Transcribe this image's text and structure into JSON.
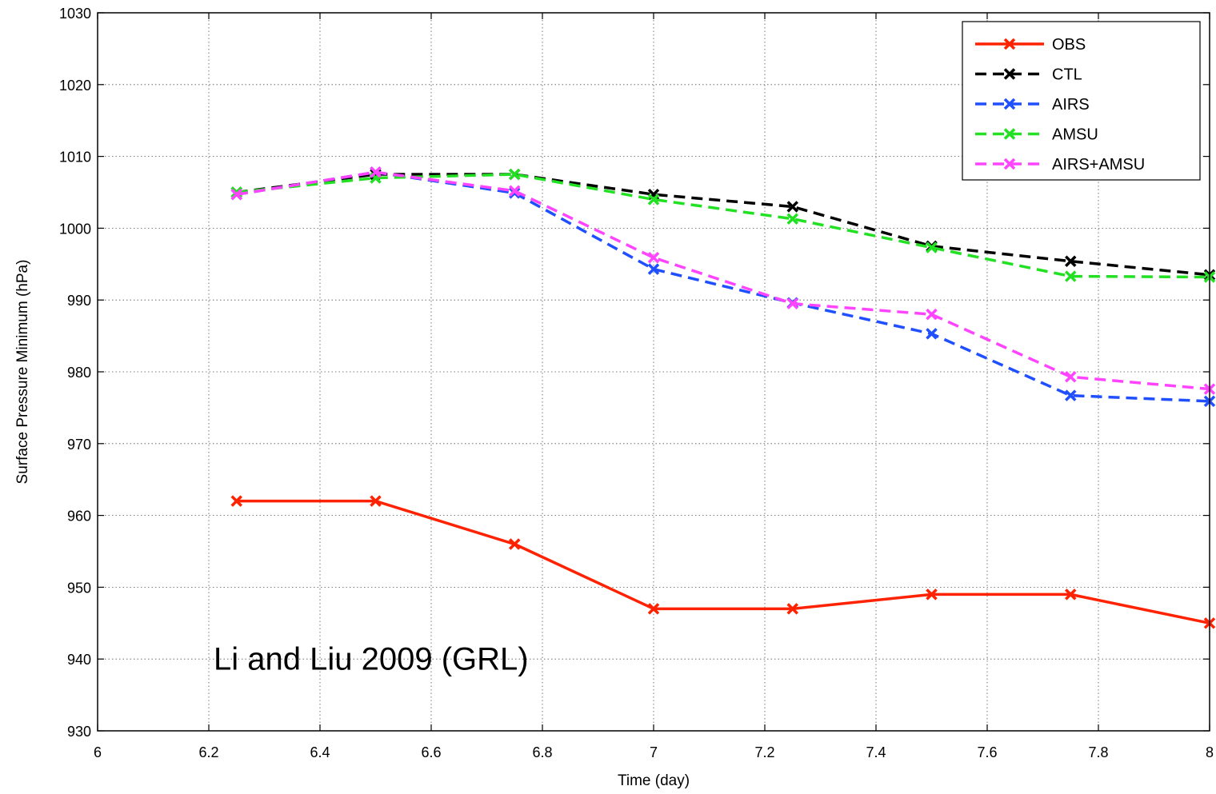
{
  "chart_data": {
    "type": "line",
    "xlabel": "Time (day)",
    "ylabel": "Surface Pressure Minimum (hPa)",
    "xlim": [
      6,
      8
    ],
    "ylim": [
      930,
      1030
    ],
    "x_ticks": [
      6,
      6.2,
      6.4,
      6.6,
      6.8,
      7,
      7.2,
      7.4,
      7.6,
      7.8,
      8
    ],
    "x_tick_labels": [
      "6",
      "6.2",
      "6.4",
      "6.6",
      "6.8",
      "7",
      "7.2",
      "7.4",
      "7.6",
      "7.8",
      "8"
    ],
    "y_ticks": [
      930,
      940,
      950,
      960,
      970,
      980,
      990,
      1000,
      1010,
      1020,
      1030
    ],
    "y_tick_labels": [
      "930",
      "940",
      "950",
      "960",
      "970",
      "980",
      "990",
      "1000",
      "1010",
      "1020",
      "1030"
    ],
    "grid": true,
    "legend_position": "top-right",
    "annotation": "Li and Liu 2009 (GRL)",
    "x": [
      6.25,
      6.5,
      6.75,
      7.0,
      7.25,
      7.5,
      7.75,
      8.0
    ],
    "series": [
      {
        "name": "OBS",
        "color": "#ff2200",
        "style": "solid",
        "marker": "x",
        "values": [
          962,
          962,
          956,
          947,
          947,
          949,
          949,
          945
        ]
      },
      {
        "name": "CTL",
        "color": "#000000",
        "style": "dashed",
        "marker": "x",
        "values": [
          1005,
          1007.5,
          1007.5,
          1004.7,
          1003,
          997.5,
          995.4,
          993.5
        ]
      },
      {
        "name": "AIRS",
        "color": "#1f4fff",
        "style": "dashed",
        "marker": "x",
        "values": [
          1004.7,
          1007.8,
          1004.9,
          994.3,
          989.6,
          985.3,
          976.7,
          975.9
        ]
      },
      {
        "name": "AMSU",
        "color": "#22e022",
        "style": "dashed",
        "marker": "x",
        "values": [
          1005,
          1007,
          1007.5,
          1004,
          1001.3,
          997.3,
          993.3,
          993.2
        ]
      },
      {
        "name": "AIRS+AMSU",
        "color": "#ff44ff",
        "style": "dashed",
        "marker": "x",
        "values": [
          1004.7,
          1007.8,
          1005.2,
          995.9,
          989.5,
          988,
          979.3,
          977.6
        ]
      }
    ]
  }
}
